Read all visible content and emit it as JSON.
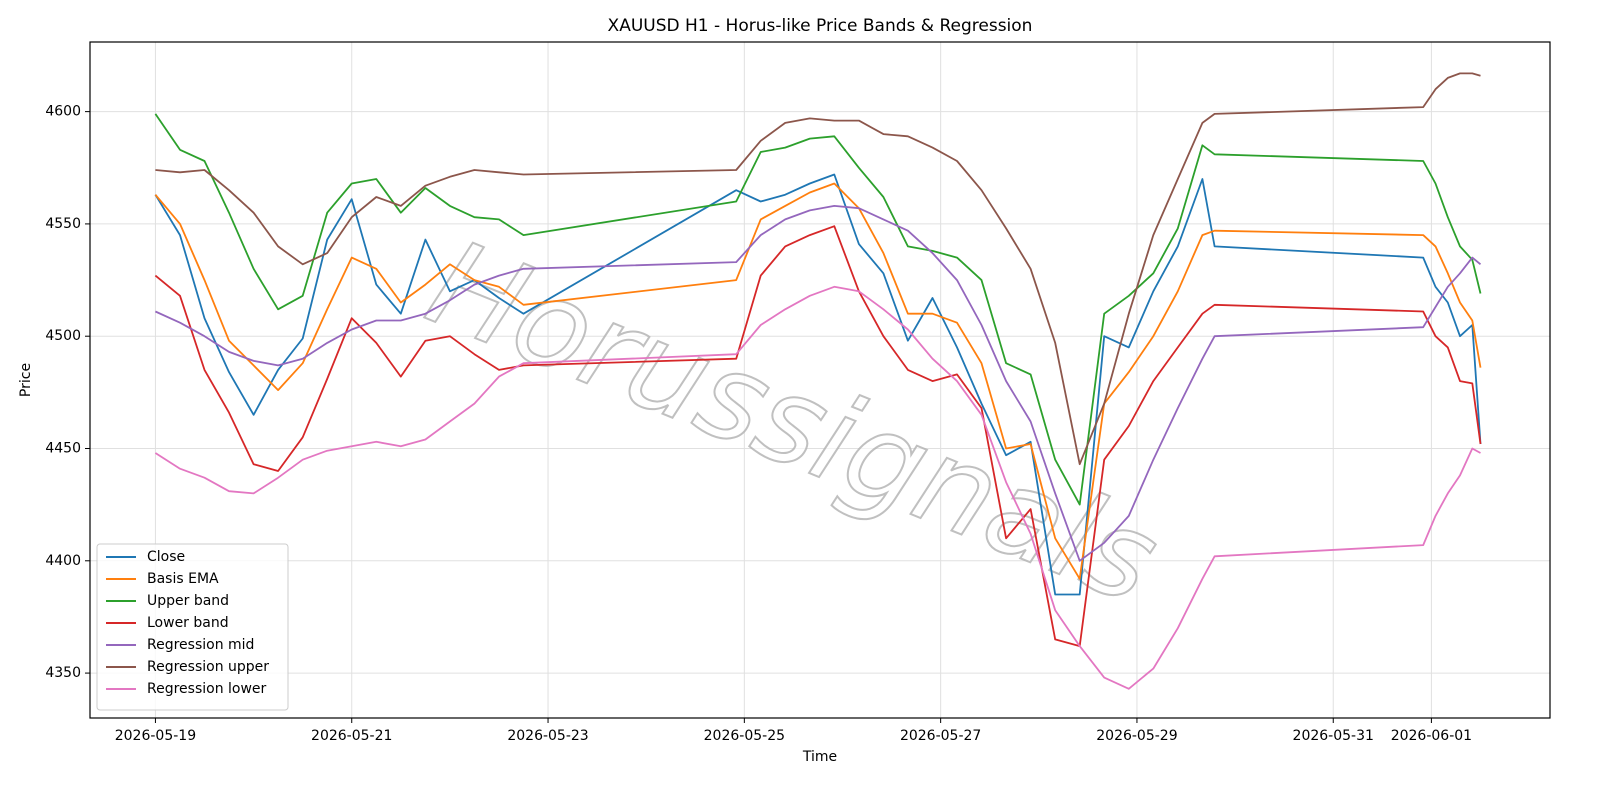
{
  "chart_data": {
    "type": "line",
    "title": "XAUUSD H1 - Horus-like Price Bands & Regression",
    "x_label": "Time",
    "y_label": "Price",
    "watermark": "Horussignals",
    "grid": true,
    "legend": "lower left",
    "xlim": [
      "2026-05-18 08:00",
      "2026-06-02 05:00"
    ],
    "xticks": [
      "2026-05-19",
      "2026-05-21",
      "2026-05-23",
      "2026-05-25",
      "2026-05-27",
      "2026-05-29",
      "2026-05-31",
      "2026-06-01"
    ],
    "ylim": [
      4330,
      4631
    ],
    "yticks": [
      4350,
      4400,
      4450,
      4500,
      4550,
      4600
    ],
    "x": [
      "2026-05-19 00:00",
      "2026-05-19 06:00",
      "2026-05-19 12:00",
      "2026-05-19 18:00",
      "2026-05-20 00:00",
      "2026-05-20 06:00",
      "2026-05-20 12:00",
      "2026-05-20 18:00",
      "2026-05-21 00:00",
      "2026-05-21 06:00",
      "2026-05-21 12:00",
      "2026-05-21 18:00",
      "2026-05-22 00:00",
      "2026-05-22 06:00",
      "2026-05-22 12:00",
      "2026-05-22 18:00",
      "2026-05-24 22:00",
      "2026-05-25 04:00",
      "2026-05-25 10:00",
      "2026-05-25 16:00",
      "2026-05-25 22:00",
      "2026-05-26 04:00",
      "2026-05-26 10:00",
      "2026-05-26 16:00",
      "2026-05-26 22:00",
      "2026-05-27 04:00",
      "2026-05-27 10:00",
      "2026-05-27 16:00",
      "2026-05-27 22:00",
      "2026-05-28 04:00",
      "2026-05-28 10:00",
      "2026-05-28 16:00",
      "2026-05-28 22:00",
      "2026-05-29 04:00",
      "2026-05-29 10:00",
      "2026-05-29 16:00",
      "2026-05-29 19:00",
      "2026-05-31 22:00",
      "2026-06-01 01:00",
      "2026-06-01 04:00",
      "2026-06-01 07:00",
      "2026-06-01 10:00",
      "2026-06-01 12:00"
    ],
    "series": [
      {
        "name": "Close",
        "color": "#1f77b4",
        "values": [
          4563,
          4545,
          4508,
          4484,
          4465,
          4485,
          4499,
          4543,
          4561,
          4523,
          4510,
          4543,
          4520,
          4525,
          4517,
          4510,
          4565,
          4560,
          4563,
          4568,
          4572,
          4541,
          4528,
          4498,
          4517,
          4495,
          4470,
          4447,
          4453,
          4385,
          4385,
          4500,
          4495,
          4520,
          4540,
          4570,
          4540,
          4535,
          4522,
          4515,
          4500,
          4505,
          4452
        ]
      },
      {
        "name": "Basis EMA",
        "color": "#ff7f0e",
        "values": [
          4563,
          4550,
          4525,
          4498,
          4487,
          4476,
          4488,
          4512,
          4535,
          4530,
          4515,
          4523,
          4532,
          4525,
          4522,
          4514,
          4525,
          4552,
          4558,
          4564,
          4568,
          4557,
          4537,
          4510,
          4510,
          4506,
          4488,
          4450,
          4452,
          4410,
          4392,
          4470,
          4484,
          4500,
          4520,
          4545,
          4547,
          4545,
          4540,
          4528,
          4515,
          4507,
          4486
        ]
      },
      {
        "name": "Upper band",
        "color": "#2ca02c",
        "values": [
          4599,
          4583,
          4578,
          4555,
          4530,
          4512,
          4518,
          4555,
          4568,
          4570,
          4555,
          4566,
          4558,
          4553,
          4552,
          4545,
          4560,
          4582,
          4584,
          4588,
          4589,
          4575,
          4562,
          4540,
          4538,
          4535,
          4525,
          4488,
          4483,
          4445,
          4425,
          4510,
          4518,
          4528,
          4548,
          4585,
          4581,
          4578,
          4568,
          4553,
          4540,
          4534,
          4519
        ]
      },
      {
        "name": "Lower band",
        "color": "#d62728",
        "values": [
          4527,
          4518,
          4485,
          4466,
          4443,
          4440,
          4455,
          4481,
          4508,
          4497,
          4482,
          4498,
          4500,
          4492,
          4485,
          4487,
          4490,
          4527,
          4540,
          4545,
          4549,
          4520,
          4500,
          4485,
          4480,
          4483,
          4468,
          4410,
          4423,
          4365,
          4362,
          4445,
          4460,
          4480,
          4495,
          4510,
          4514,
          4511,
          4500,
          4495,
          4480,
          4479,
          4452
        ]
      },
      {
        "name": "Regression mid",
        "color": "#9467bd",
        "values": [
          4511,
          4506,
          4500,
          4493,
          4489,
          4487,
          4490,
          4497,
          4503,
          4507,
          4507,
          4510,
          4516,
          4523,
          4527,
          4530,
          4533,
          4545,
          4552,
          4556,
          4558,
          4557,
          4552,
          4547,
          4537,
          4525,
          4505,
          4480,
          4462,
          4430,
          4400,
          4408,
          4420,
          4445,
          4468,
          4490,
          4500,
          4504,
          4513,
          4522,
          4528,
          4535,
          4532
        ]
      },
      {
        "name": "Regression upper",
        "color": "#8c564b",
        "values": [
          4574,
          4573,
          4574,
          4565,
          4555,
          4540,
          4532,
          4537,
          4553,
          4562,
          4558,
          4567,
          4571,
          4574,
          4573,
          4572,
          4574,
          4587,
          4595,
          4597,
          4596,
          4596,
          4590,
          4589,
          4584,
          4578,
          4565,
          4548,
          4530,
          4497,
          4443,
          4470,
          4510,
          4545,
          4570,
          4595,
          4599,
          4602,
          4610,
          4615,
          4617,
          4617,
          4616
        ]
      },
      {
        "name": "Regression lower",
        "color": "#e377c2",
        "values": [
          4448,
          4441,
          4437,
          4431,
          4430,
          4437,
          4445,
          4449,
          4451,
          4453,
          4451,
          4454,
          4462,
          4470,
          4482,
          4488,
          4492,
          4505,
          4512,
          4518,
          4522,
          4520,
          4512,
          4503,
          4490,
          4480,
          4465,
          4435,
          4412,
          4378,
          4362,
          4348,
          4343,
          4352,
          4370,
          4392,
          4402,
          4407,
          4420,
          4430,
          4438,
          4450,
          4448
        ]
      }
    ]
  }
}
